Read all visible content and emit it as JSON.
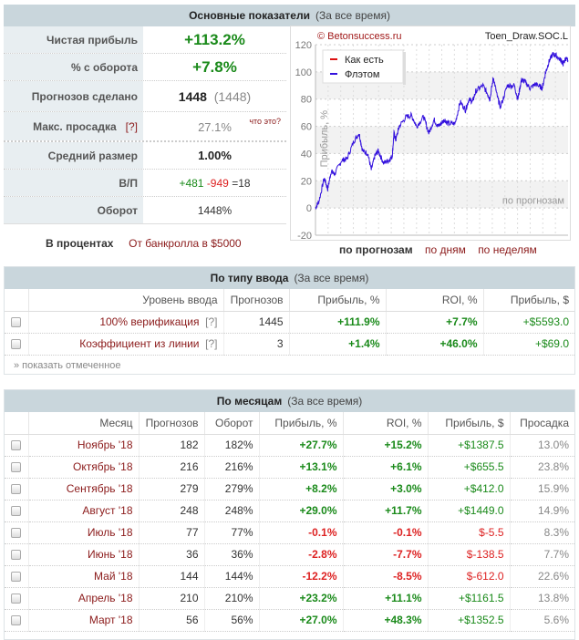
{
  "main": {
    "title": "Основные показатели",
    "subtitle": "(За все время)",
    "rows": [
      {
        "label": "Чистая прибыль",
        "value": "+113.2%"
      },
      {
        "label": "% с оборота",
        "value": "+7.8%"
      },
      {
        "label": "Прогнозов сделано",
        "value": "1448",
        "extra": "(1448)"
      },
      {
        "label": "Макс. просадка",
        "help": "[?]",
        "value": "27.1%",
        "extra": "что это?"
      },
      {
        "label": "Средний размер",
        "value": "1.00%"
      },
      {
        "label": "В/П",
        "win": "+481",
        "loss": "-949",
        "draw": "=18"
      },
      {
        "label": "Оборот",
        "value": "1448%"
      }
    ],
    "mode_tabs": [
      "В процентах",
      "От банкролла в $5000"
    ]
  },
  "chart_data": {
    "type": "line",
    "copyright": "© Betonsuccess.ru",
    "name": "Toen_Draw.SOC.L",
    "ylabel": "Прибыль, %",
    "watermark": "по прогнозам",
    "ylim": [
      -20,
      120
    ],
    "yticks": [
      120,
      100,
      80,
      60,
      40,
      20,
      0,
      -20
    ],
    "xlim": [
      0,
      1448
    ],
    "legend": [
      "Как есть",
      "Флэтом"
    ],
    "colors": {
      "as_is": "#dd1111",
      "flat": "#3311dd"
    },
    "series": [
      {
        "name": "Флэтом",
        "x": [
          0,
          20,
          50,
          70,
          90,
          110,
          150,
          180,
          220,
          250,
          270,
          300,
          320,
          340,
          360,
          390,
          420,
          440,
          450,
          460,
          480,
          520,
          550,
          580,
          620,
          650,
          680,
          700,
          720,
          740,
          760,
          800,
          830,
          860,
          880,
          900,
          920,
          960,
          990,
          1000,
          1020,
          1040,
          1060,
          1100,
          1140,
          1160,
          1180,
          1200,
          1230,
          1260,
          1280,
          1300,
          1320,
          1340,
          1360,
          1380,
          1410,
          1420,
          1435,
          1448
        ],
        "y": [
          0,
          5,
          22,
          14,
          27,
          25,
          35,
          36,
          49,
          55,
          42,
          40,
          28,
          38,
          42,
          33,
          35,
          38,
          55,
          50,
          60,
          67,
          68,
          60,
          67,
          55,
          65,
          60,
          62,
          65,
          62,
          62,
          78,
          72,
          80,
          78,
          86,
          90,
          83,
          80,
          96,
          83,
          74,
          90,
          90,
          80,
          94,
          93,
          88,
          91,
          90,
          88,
          100,
          108,
          113,
          112,
          108,
          106,
          110,
          108
        ]
      }
    ],
    "tabs": [
      "по прогнозам",
      "по дням",
      "по неделям"
    ]
  },
  "entry": {
    "title": "По типу ввода",
    "subtitle": "(За все время)",
    "columns": [
      "Уровень ввода",
      "Прогнозов",
      "Прибыль, %",
      "ROI, %",
      "Прибыль, $"
    ],
    "rows": [
      {
        "name": "100% верификация",
        "help": "[?]",
        "count": "1445",
        "profit": "+111.9%",
        "roi": "+7.7%",
        "usd": "+$5593.0"
      },
      {
        "name": "Коэффициент из линии",
        "help": "[?]",
        "count": "3",
        "profit": "+1.4%",
        "roi": "+46.0%",
        "usd": "+$69.0"
      }
    ],
    "show_marked": "» показать отмеченное"
  },
  "months": {
    "title": "По месяцам",
    "subtitle": "(За все время)",
    "columns": [
      "Месяц",
      "Прогнозов",
      "Оборот",
      "Прибыль, %",
      "ROI, %",
      "Прибыль, $",
      "Просадка"
    ],
    "rows": [
      [
        "Ноябрь '18",
        "182",
        "182%",
        "+27.7%",
        "+15.2%",
        "+$1387.5",
        "13.0%"
      ],
      [
        "Октябрь '18",
        "216",
        "216%",
        "+13.1%",
        "+6.1%",
        "+$655.5",
        "23.8%"
      ],
      [
        "Сентябрь '18",
        "279",
        "279%",
        "+8.2%",
        "+3.0%",
        "+$412.0",
        "15.9%"
      ],
      [
        "Август '18",
        "248",
        "248%",
        "+29.0%",
        "+11.7%",
        "+$1449.0",
        "14.9%"
      ],
      [
        "Июль '18",
        "77",
        "77%",
        "-0.1%",
        "-0.1%",
        "$-5.5",
        "8.3%"
      ],
      [
        "Июнь '18",
        "36",
        "36%",
        "-2.8%",
        "-7.7%",
        "$-138.5",
        "7.7%"
      ],
      [
        "Май '18",
        "144",
        "144%",
        "-12.2%",
        "-8.5%",
        "$-612.0",
        "22.6%"
      ],
      [
        "Апрель '18",
        "210",
        "210%",
        "+23.2%",
        "+11.1%",
        "+$1161.5",
        "13.8%"
      ],
      [
        "Март '18",
        "56",
        "56%",
        "+27.0%",
        "+48.3%",
        "+$1352.5",
        "5.6%"
      ]
    ]
  }
}
